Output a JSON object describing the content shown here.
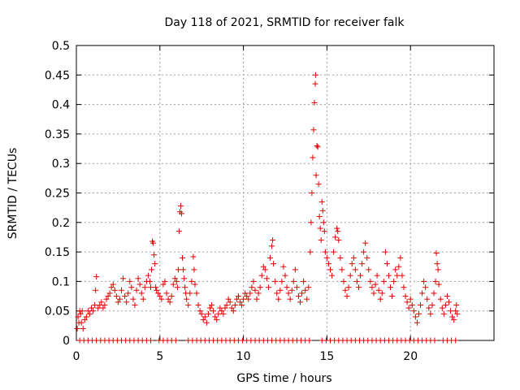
{
  "chart_data": {
    "type": "scatter",
    "title": "Day 118 of 2021, SRMTID for receiver falk",
    "xlabel": "GPS time / hours",
    "ylabel": "SRMTID / TECUs",
    "xlim": [
      0,
      25
    ],
    "ylim": [
      0,
      0.5
    ],
    "xticks": [
      "0",
      "5",
      "10",
      "15",
      "20"
    ],
    "yticks": [
      "0",
      "0.05",
      "0.1",
      "0.15",
      "0.2",
      "0.25",
      "0.3",
      "0.35",
      "0.4",
      "0.45",
      "0.5"
    ],
    "grid": true,
    "marker": "+",
    "color": "#e00000",
    "series": [
      {
        "name": "",
        "points": [
          [
            0.05,
            0.02
          ],
          [
            0.1,
            0.04
          ],
          [
            0.15,
            0.03
          ],
          [
            0.2,
            0.05
          ],
          [
            0.25,
            0.045
          ],
          [
            0.3,
            0.03
          ],
          [
            0.35,
            0.05
          ],
          [
            0.4,
            0.02
          ],
          [
            0.5,
            0.035
          ],
          [
            0.6,
            0.04
          ],
          [
            0.7,
            0.05
          ],
          [
            0.8,
            0.045
          ],
          [
            0.9,
            0.055
          ],
          [
            1.0,
            0.05
          ],
          [
            1.1,
            0.06
          ],
          [
            1.15,
            0.085
          ],
          [
            1.2,
            0.108
          ],
          [
            1.3,
            0.055
          ],
          [
            1.4,
            0.06
          ],
          [
            1.5,
            0.065
          ],
          [
            1.6,
            0.055
          ],
          [
            1.7,
            0.06
          ],
          [
            1.8,
            0.07
          ],
          [
            1.9,
            0.075
          ],
          [
            2.0,
            0.08
          ],
          [
            2.1,
            0.09
          ],
          [
            2.2,
            0.095
          ],
          [
            2.3,
            0.085
          ],
          [
            2.4,
            0.075
          ],
          [
            2.5,
            0.065
          ],
          [
            2.6,
            0.07
          ],
          [
            2.7,
            0.085
          ],
          [
            2.8,
            0.105
          ],
          [
            2.9,
            0.075
          ],
          [
            3.0,
            0.065
          ],
          [
            3.1,
            0.08
          ],
          [
            3.2,
            0.1
          ],
          [
            3.3,
            0.09
          ],
          [
            3.4,
            0.07
          ],
          [
            3.5,
            0.06
          ],
          [
            3.6,
            0.085
          ],
          [
            3.7,
            0.105
          ],
          [
            3.8,
            0.095
          ],
          [
            3.9,
            0.08
          ],
          [
            4.0,
            0.07
          ],
          [
            4.1,
            0.09
          ],
          [
            4.2,
            0.1
          ],
          [
            4.3,
            0.11
          ],
          [
            4.4,
            0.1
          ],
          [
            4.45,
            0.09
          ],
          [
            4.5,
            0.12
          ],
          [
            4.55,
            0.168
          ],
          [
            4.6,
            0.165
          ],
          [
            4.65,
            0.145
          ],
          [
            4.7,
            0.13
          ],
          [
            4.75,
            0.09
          ],
          [
            4.8,
            0.085
          ],
          [
            4.9,
            0.08
          ],
          [
            5.0,
            0.075
          ],
          [
            5.1,
            0.07
          ],
          [
            5.2,
            0.095
          ],
          [
            5.3,
            0.1
          ],
          [
            5.4,
            0.08
          ],
          [
            5.5,
            0.07
          ],
          [
            5.6,
            0.065
          ],
          [
            5.7,
            0.075
          ],
          [
            5.8,
            0.095
          ],
          [
            5.9,
            0.105
          ],
          [
            6.0,
            0.1
          ],
          [
            6.05,
            0.09
          ],
          [
            6.1,
            0.12
          ],
          [
            6.15,
            0.185
          ],
          [
            6.2,
            0.218
          ],
          [
            6.25,
            0.228
          ],
          [
            6.3,
            0.215
          ],
          [
            6.35,
            0.14
          ],
          [
            6.4,
            0.12
          ],
          [
            6.45,
            0.105
          ],
          [
            6.5,
            0.09
          ],
          [
            6.55,
            0.08
          ],
          [
            6.6,
            0.07
          ],
          [
            6.7,
            0.06
          ],
          [
            6.8,
            0.08
          ],
          [
            6.9,
            0.1
          ],
          [
            7.0,
            0.142
          ],
          [
            7.05,
            0.12
          ],
          [
            7.1,
            0.095
          ],
          [
            7.2,
            0.08
          ],
          [
            7.3,
            0.06
          ],
          [
            7.4,
            0.05
          ],
          [
            7.5,
            0.045
          ],
          [
            7.6,
            0.035
          ],
          [
            7.7,
            0.04
          ],
          [
            7.8,
            0.03
          ],
          [
            7.9,
            0.045
          ],
          [
            8.0,
            0.055
          ],
          [
            8.1,
            0.06
          ],
          [
            8.2,
            0.05
          ],
          [
            8.3,
            0.04
          ],
          [
            8.4,
            0.035
          ],
          [
            8.5,
            0.045
          ],
          [
            8.6,
            0.055
          ],
          [
            8.7,
            0.05
          ],
          [
            8.8,
            0.045
          ],
          [
            8.9,
            0.055
          ],
          [
            9.0,
            0.06
          ],
          [
            9.1,
            0.07
          ],
          [
            9.2,
            0.065
          ],
          [
            9.3,
            0.055
          ],
          [
            9.4,
            0.05
          ],
          [
            9.5,
            0.06
          ],
          [
            9.6,
            0.07
          ],
          [
            9.7,
            0.075
          ],
          [
            9.8,
            0.065
          ],
          [
            9.9,
            0.06
          ],
          [
            10.0,
            0.07
          ],
          [
            10.1,
            0.08
          ],
          [
            10.2,
            0.075
          ],
          [
            10.3,
            0.07
          ],
          [
            10.4,
            0.08
          ],
          [
            10.5,
            0.09
          ],
          [
            10.6,
            0.1
          ],
          [
            10.7,
            0.085
          ],
          [
            10.8,
            0.07
          ],
          [
            10.9,
            0.08
          ],
          [
            11.0,
            0.09
          ],
          [
            11.1,
            0.11
          ],
          [
            11.2,
            0.125
          ],
          [
            11.3,
            0.12
          ],
          [
            11.4,
            0.105
          ],
          [
            11.5,
            0.09
          ],
          [
            11.6,
            0.14
          ],
          [
            11.7,
            0.16
          ],
          [
            11.75,
            0.17
          ],
          [
            11.8,
            0.13
          ],
          [
            11.9,
            0.1
          ],
          [
            12.0,
            0.08
          ],
          [
            12.1,
            0.07
          ],
          [
            12.2,
            0.085
          ],
          [
            12.3,
            0.1
          ],
          [
            12.4,
            0.125
          ],
          [
            12.5,
            0.11
          ],
          [
            12.6,
            0.09
          ],
          [
            12.7,
            0.08
          ],
          [
            12.8,
            0.07
          ],
          [
            12.9,
            0.085
          ],
          [
            13.0,
            0.1
          ],
          [
            13.1,
            0.12
          ],
          [
            13.2,
            0.09
          ],
          [
            13.3,
            0.075
          ],
          [
            13.4,
            0.065
          ],
          [
            13.5,
            0.08
          ],
          [
            13.6,
            0.1
          ],
          [
            13.7,
            0.085
          ],
          [
            13.8,
            0.07
          ],
          [
            13.9,
            0.09
          ],
          [
            14.0,
            0.15
          ],
          [
            14.05,
            0.2
          ],
          [
            14.1,
            0.25
          ],
          [
            14.15,
            0.31
          ],
          [
            14.2,
            0.357
          ],
          [
            14.25,
            0.403
          ],
          [
            14.3,
            0.435
          ],
          [
            14.32,
            0.45
          ],
          [
            14.35,
            0.28
          ],
          [
            14.4,
            0.33
          ],
          [
            14.45,
            0.328
          ],
          [
            14.5,
            0.265
          ],
          [
            14.55,
            0.21
          ],
          [
            14.6,
            0.19
          ],
          [
            14.65,
            0.17
          ],
          [
            14.7,
            0.235
          ],
          [
            14.75,
            0.22
          ],
          [
            14.8,
            0.2
          ],
          [
            14.85,
            0.185
          ],
          [
            14.9,
            0.15
          ],
          [
            15.0,
            0.14
          ],
          [
            15.1,
            0.13
          ],
          [
            15.2,
            0.12
          ],
          [
            15.3,
            0.11
          ],
          [
            15.4,
            0.15
          ],
          [
            15.5,
            0.175
          ],
          [
            15.6,
            0.19
          ],
          [
            15.65,
            0.185
          ],
          [
            15.7,
            0.17
          ],
          [
            15.8,
            0.14
          ],
          [
            15.9,
            0.12
          ],
          [
            16.0,
            0.1
          ],
          [
            16.1,
            0.085
          ],
          [
            16.2,
            0.075
          ],
          [
            16.3,
            0.09
          ],
          [
            16.4,
            0.11
          ],
          [
            16.5,
            0.13
          ],
          [
            16.6,
            0.14
          ],
          [
            16.7,
            0.12
          ],
          [
            16.8,
            0.1
          ],
          [
            16.9,
            0.09
          ],
          [
            17.0,
            0.11
          ],
          [
            17.1,
            0.13
          ],
          [
            17.2,
            0.15
          ],
          [
            17.3,
            0.165
          ],
          [
            17.4,
            0.14
          ],
          [
            17.5,
            0.12
          ],
          [
            17.6,
            0.1
          ],
          [
            17.7,
            0.09
          ],
          [
            17.8,
            0.08
          ],
          [
            17.9,
            0.095
          ],
          [
            18.0,
            0.11
          ],
          [
            18.1,
            0.085
          ],
          [
            18.2,
            0.07
          ],
          [
            18.3,
            0.08
          ],
          [
            18.4,
            0.1
          ],
          [
            18.5,
            0.15
          ],
          [
            18.6,
            0.13
          ],
          [
            18.7,
            0.11
          ],
          [
            18.8,
            0.09
          ],
          [
            18.9,
            0.075
          ],
          [
            19.0,
            0.1
          ],
          [
            19.1,
            0.12
          ],
          [
            19.2,
            0.11
          ],
          [
            19.3,
            0.125
          ],
          [
            19.4,
            0.14
          ],
          [
            19.5,
            0.11
          ],
          [
            19.6,
            0.09
          ],
          [
            19.7,
            0.075
          ],
          [
            19.8,
            0.065
          ],
          [
            19.9,
            0.055
          ],
          [
            20.0,
            0.07
          ],
          [
            20.1,
            0.06
          ],
          [
            20.2,
            0.05
          ],
          [
            20.3,
            0.04
          ],
          [
            20.4,
            0.03
          ],
          [
            20.5,
            0.045
          ],
          [
            20.6,
            0.06
          ],
          [
            20.7,
            0.08
          ],
          [
            20.8,
            0.1
          ],
          [
            20.9,
            0.09
          ],
          [
            21.0,
            0.07
          ],
          [
            21.1,
            0.055
          ],
          [
            21.2,
            0.045
          ],
          [
            21.3,
            0.06
          ],
          [
            21.4,
            0.08
          ],
          [
            21.5,
            0.1
          ],
          [
            21.55,
            0.148
          ],
          [
            21.6,
            0.13
          ],
          [
            21.65,
            0.12
          ],
          [
            21.7,
            0.095
          ],
          [
            21.8,
            0.07
          ],
          [
            21.9,
            0.055
          ],
          [
            22.0,
            0.045
          ],
          [
            22.1,
            0.06
          ],
          [
            22.2,
            0.075
          ],
          [
            22.3,
            0.065
          ],
          [
            22.4,
            0.05
          ],
          [
            22.5,
            0.04
          ],
          [
            22.6,
            0.035
          ],
          [
            22.7,
            0.05
          ],
          [
            22.75,
            0.06
          ],
          [
            22.8,
            0.045
          ]
        ]
      }
    ],
    "zero_band": {
      "y": 0.0,
      "x_from": 0.2,
      "x_to": 22.8,
      "step": 0.25,
      "skip": [
        [
          4.5,
          4.85
        ],
        [
          6.1,
          6.5
        ],
        [
          14.1,
          14.45
        ],
        [
          21.5,
          21.75
        ]
      ]
    }
  }
}
